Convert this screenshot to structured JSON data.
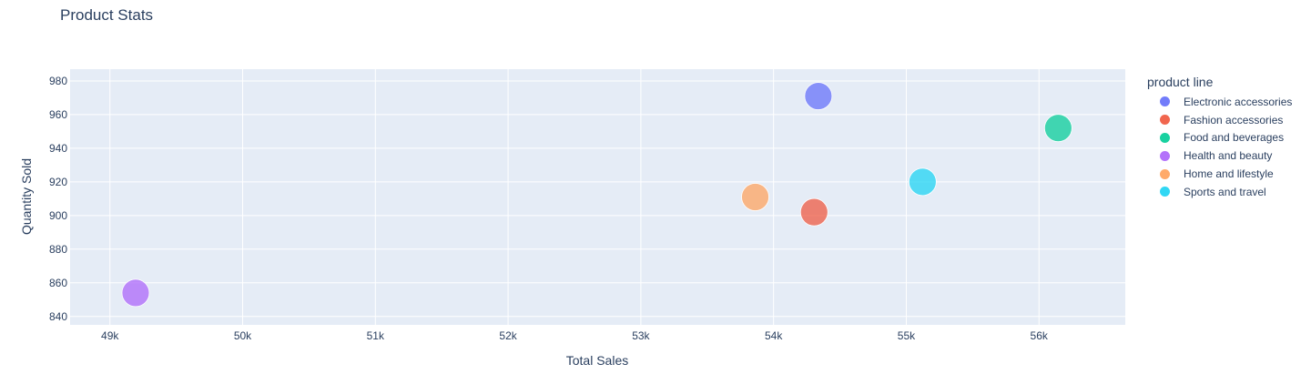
{
  "chart_data": {
    "type": "scatter",
    "title": "Product Stats",
    "xlabel": "Total Sales",
    "ylabel": "Quantity Sold",
    "xlim": [
      48700,
      56650
    ],
    "ylim": [
      835,
      987
    ],
    "x_ticks": [
      49000,
      50000,
      51000,
      52000,
      53000,
      54000,
      55000,
      56000
    ],
    "x_tick_labels": [
      "49k",
      "50k",
      "51k",
      "52k",
      "53k",
      "54k",
      "55k",
      "56k"
    ],
    "y_ticks": [
      840,
      860,
      880,
      900,
      920,
      940,
      960,
      980
    ],
    "y_tick_labels": [
      "840",
      "860",
      "880",
      "900",
      "920",
      "940",
      "960",
      "980"
    ],
    "grid": true,
    "legend_title": "product line",
    "legend_position": "right",
    "series": [
      {
        "name": "Electronic accessories",
        "color": "#636efa",
        "x": [
          54337.5
        ],
        "y": [
          971
        ]
      },
      {
        "name": "Fashion accessories",
        "color": "#ef553b",
        "x": [
          54305.9
        ],
        "y": [
          902
        ]
      },
      {
        "name": "Food and beverages",
        "color": "#00cc96",
        "x": [
          56144.8
        ],
        "y": [
          952
        ]
      },
      {
        "name": "Health and beauty",
        "color": "#ab63fa",
        "x": [
          49193.7
        ],
        "y": [
          854
        ]
      },
      {
        "name": "Home and lifestyle",
        "color": "#ffa15a",
        "x": [
          53861.9
        ],
        "y": [
          911
        ]
      },
      {
        "name": "Sports and travel",
        "color": "#19d3f3",
        "x": [
          55122.8
        ],
        "y": [
          920
        ]
      }
    ]
  }
}
